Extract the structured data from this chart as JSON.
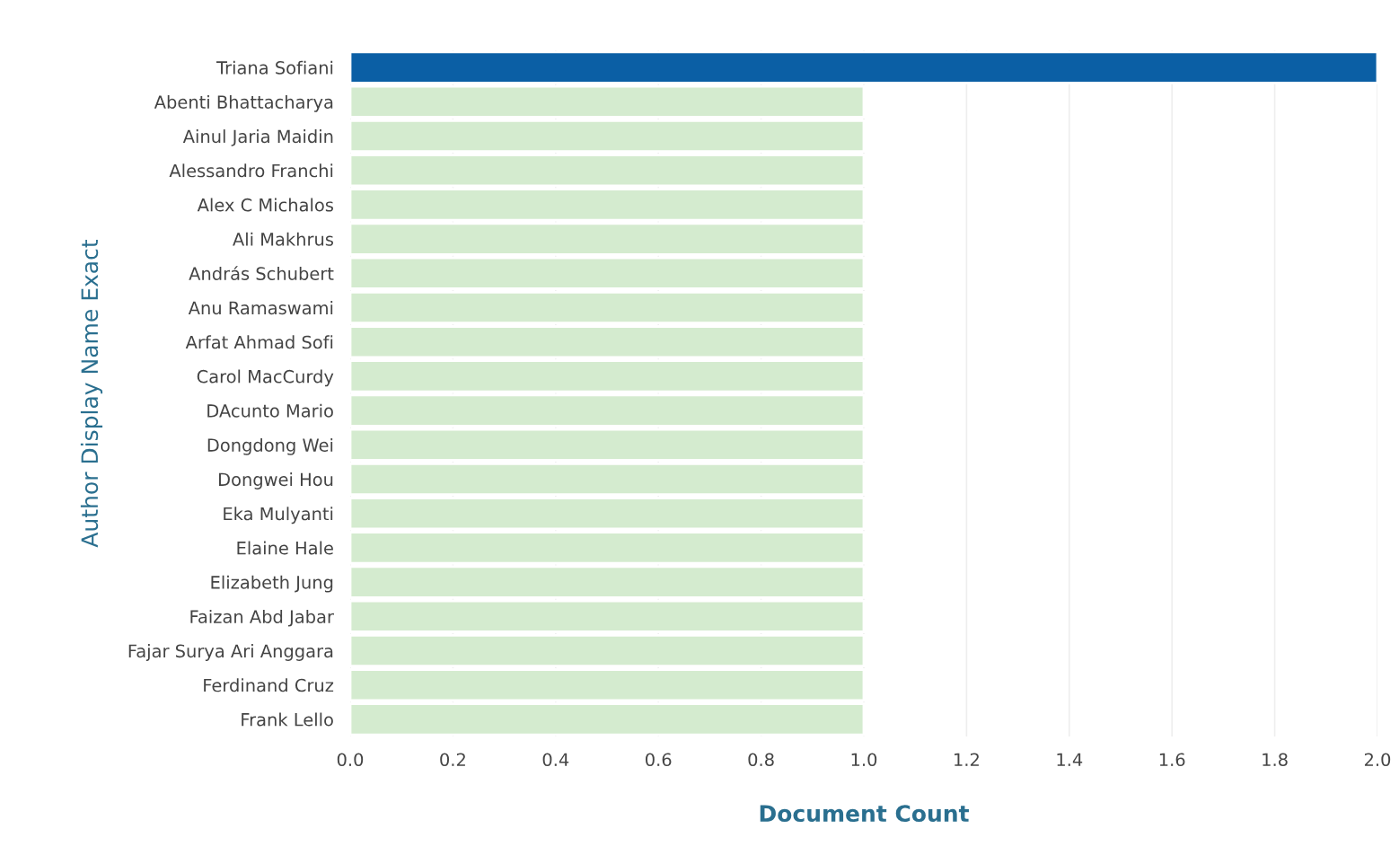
{
  "chart_data": {
    "type": "bar",
    "orientation": "horizontal",
    "xlabel": "Document Count",
    "ylabel": "Author Display Name Exact",
    "categories": [
      "Triana Sofiani",
      "Abenti Bhattacharya",
      "Ainul Jaria Maidin",
      "Alessandro Franchi",
      "Alex C Michalos",
      "Ali Makhrus",
      "András Schubert",
      "Anu Ramaswami",
      "Arfat Ahmad Sofi",
      "Carol MacCurdy",
      "DAcunto Mario",
      "Dongdong Wei",
      "Dongwei Hou",
      "Eka Mulyanti",
      "Elaine Hale",
      "Elizabeth Jung",
      "Faizan Abd Jabar",
      "Fajar Surya Ari Anggara",
      "Ferdinand Cruz",
      "Frank Lello"
    ],
    "values": [
      2,
      1,
      1,
      1,
      1,
      1,
      1,
      1,
      1,
      1,
      1,
      1,
      1,
      1,
      1,
      1,
      1,
      1,
      1,
      1
    ],
    "colors": [
      "#0b5fa5",
      "#d4ebcf",
      "#d4ebcf",
      "#d4ebcf",
      "#d4ebcf",
      "#d4ebcf",
      "#d4ebcf",
      "#d4ebcf",
      "#d4ebcf",
      "#d4ebcf",
      "#d4ebcf",
      "#d4ebcf",
      "#d4ebcf",
      "#d4ebcf",
      "#d4ebcf",
      "#d4ebcf",
      "#d4ebcf",
      "#d4ebcf",
      "#d4ebcf",
      "#d4ebcf"
    ],
    "xlim": [
      0,
      2
    ],
    "xticks": [
      {
        "value": 0,
        "label": "0.0"
      },
      {
        "value": 0.2,
        "label": "0.2"
      },
      {
        "value": 0.4,
        "label": "0.4"
      },
      {
        "value": 0.6,
        "label": "0.6"
      },
      {
        "value": 0.8,
        "label": "0.8"
      },
      {
        "value": 1,
        "label": "1.0"
      },
      {
        "value": 1.2,
        "label": "1.2"
      },
      {
        "value": 1.4,
        "label": "1.4"
      },
      {
        "value": 1.6,
        "label": "1.6"
      },
      {
        "value": 1.8,
        "label": "1.8"
      },
      {
        "value": 2,
        "label": "2.0"
      }
    ],
    "grid": "x"
  }
}
